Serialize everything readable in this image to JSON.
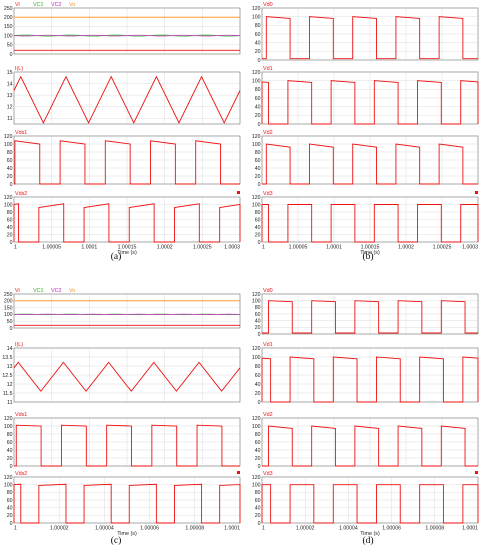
{
  "panel_labels": [
    "(a)",
    "(b)",
    "(c)",
    "(d)"
  ],
  "colors": {
    "Vi": "#ff8c1a",
    "VC1": "#33cc33",
    "VC2": "#cc33cc",
    "Vo": "#ff8c1a",
    "trace": "#ee1111",
    "legend_Vi": "#ee2222",
    "legend_VC1": "#22bb22",
    "legend_VC2": "#cc22cc",
    "legend_Vo": "#ee9922",
    "label": "#ee1111"
  },
  "chart_data": [
    {
      "type": "line",
      "name": "a1",
      "legend": [
        "Vi",
        "VC1",
        "VC2",
        "Vo"
      ],
      "ylim": [
        0,
        250
      ],
      "yticks": [
        "0",
        "50",
        "100",
        "150",
        "200",
        "250"
      ],
      "xlim": [
        1,
        1.0003
      ],
      "series": [
        {
          "key": "Vo",
          "value": 200
        },
        {
          "key": "VC1",
          "mean": 100,
          "amp": 3,
          "periods": 5
        },
        {
          "key": "VC2",
          "mean": 100,
          "amp": 2,
          "periods": 5,
          "phase": 0.5
        },
        {
          "key": "Vi",
          "value": 20
        }
      ]
    },
    {
      "type": "line",
      "name": "a2",
      "label": "I(L)",
      "ylim": [
        10.5,
        15
      ],
      "yticks": [
        "11",
        "12",
        "13",
        "14",
        "15"
      ],
      "xlim": [
        1,
        1.0003
      ],
      "triangle": {
        "min": 10.6,
        "max": 14.6,
        "periods": 5,
        "duty": 0.5,
        "start": 13.4
      }
    },
    {
      "type": "line",
      "name": "a3",
      "label": "Vds1",
      "ylim": [
        0,
        120
      ],
      "yticks": [
        "0",
        "20",
        "40",
        "60",
        "80",
        "100",
        "120"
      ],
      "xlim": [
        1,
        1.0003
      ],
      "square": {
        "high_start": 108,
        "high_end": 100,
        "low": 0,
        "periods": 5,
        "duty": 0.55,
        "offset": 0.02
      }
    },
    {
      "type": "line",
      "name": "a4",
      "label": "Vds2",
      "ylim": [
        0,
        120
      ],
      "yticks": [
        "0",
        "20",
        "40",
        "60",
        "80",
        "100",
        "120"
      ],
      "xlim": [
        1,
        1.0003
      ],
      "xticks": [
        "1",
        "1.00005",
        "1.0001",
        "1.00015",
        "1.0002",
        "1.00025",
        "1.0003"
      ],
      "xlabel": "Time (s)",
      "square": {
        "high_start": 92,
        "high_end": 102,
        "low": 0,
        "periods": 5,
        "duty": 0.55,
        "offset": 0.55
      }
    },
    {
      "type": "line",
      "name": "b1",
      "label": "Vd0",
      "ylim": [
        0,
        120
      ],
      "yticks": [
        "0",
        "20",
        "40",
        "60",
        "80",
        "100",
        "120"
      ],
      "xlim": [
        1,
        1.0003
      ],
      "square": {
        "high_start": 100,
        "high_end": 96,
        "low": 3,
        "periods": 5,
        "duty": 0.55,
        "offset": 0.1
      }
    },
    {
      "type": "line",
      "name": "b2",
      "label": "Vd1",
      "ylim": [
        0,
        120
      ],
      "yticks": [
        "0",
        "20",
        "40",
        "60",
        "80",
        "100",
        "120"
      ],
      "xlim": [
        1,
        1.0003
      ],
      "square": {
        "high_start": 100,
        "high_end": 96,
        "low": 0,
        "periods": 5,
        "duty": 0.55,
        "offset": 0.6
      }
    },
    {
      "type": "line",
      "name": "b3",
      "label": "Vd2",
      "ylim": [
        0,
        120
      ],
      "yticks": [
        "0",
        "20",
        "40",
        "60",
        "80",
        "100",
        "120"
      ],
      "xlim": [
        1,
        1.0003
      ],
      "square": {
        "high_start": 100,
        "high_end": 92,
        "low": 0,
        "periods": 5,
        "duty": 0.55,
        "offset": 0.1
      }
    },
    {
      "type": "line",
      "name": "b4",
      "label": "Vd3",
      "ylim": [
        0,
        120
      ],
      "yticks": [
        "0",
        "20",
        "40",
        "60",
        "80",
        "100",
        "120"
      ],
      "xlim": [
        1,
        1.0003
      ],
      "xticks": [
        "1",
        "1.00005",
        "1.0001",
        "1.00015",
        "1.0002",
        "1.00025",
        "1.0003"
      ],
      "xlabel": "Time (s)",
      "square": {
        "high_start": 100,
        "high_end": 100,
        "low": 0,
        "periods": 5,
        "duty": 0.55,
        "offset": 0.6
      }
    },
    {
      "type": "line",
      "name": "c1",
      "legend": [
        "Vi",
        "VC1",
        "VC2",
        "Vo"
      ],
      "ylim": [
        0,
        250
      ],
      "yticks": [
        "0",
        "50",
        "100",
        "150",
        "200",
        "250"
      ],
      "xlim": [
        1,
        1.0001
      ],
      "series": [
        {
          "key": "Vo",
          "value": 200
        },
        {
          "key": "VC1",
          "mean": 100,
          "amp": 2,
          "periods": 5
        },
        {
          "key": "VC2",
          "mean": 100,
          "amp": 1.5,
          "periods": 5,
          "phase": 0.5
        },
        {
          "key": "Vi",
          "value": 20
        }
      ]
    },
    {
      "type": "line",
      "name": "c2",
      "label": "I(L)",
      "ylim": [
        11,
        14
      ],
      "yticks": [
        "11",
        "11.5",
        "12",
        "12.5",
        "13",
        "13.5",
        "14"
      ],
      "xlim": [
        1,
        1.0001
      ],
      "triangle": {
        "min": 11.6,
        "max": 13.2,
        "periods": 5,
        "duty": 0.5,
        "start": 12.9
      }
    },
    {
      "type": "line",
      "name": "c3",
      "label": "Vds1",
      "ylim": [
        0,
        120
      ],
      "yticks": [
        "0",
        "20",
        "40",
        "60",
        "80",
        "100",
        "120"
      ],
      "xlim": [
        1,
        1.0001
      ],
      "square": {
        "high_start": 102,
        "high_end": 100,
        "low": 0,
        "periods": 5,
        "duty": 0.55,
        "offset": 0.05
      }
    },
    {
      "type": "line",
      "name": "c4",
      "label": "Vds2",
      "ylim": [
        0,
        120
      ],
      "yticks": [
        "0",
        "20",
        "40",
        "60",
        "80",
        "100",
        "120"
      ],
      "xlim": [
        1,
        1.0001
      ],
      "xticks": [
        "1",
        "1.00002",
        "1.00004",
        "1.00006",
        "1.00008",
        "1.0001"
      ],
      "xlabel": "Time (s)",
      "square": {
        "high_start": 98,
        "high_end": 101,
        "low": 0,
        "periods": 5,
        "duty": 0.6,
        "offset": 0.55
      }
    },
    {
      "type": "line",
      "name": "d1",
      "label": "Vd0",
      "ylim": [
        0,
        120
      ],
      "yticks": [
        "0",
        "20",
        "40",
        "60",
        "80",
        "100",
        "120"
      ],
      "xlim": [
        1,
        1.0001
      ],
      "square": {
        "high_start": 100,
        "high_end": 97,
        "low": 3,
        "periods": 5,
        "duty": 0.55,
        "offset": 0.15
      }
    },
    {
      "type": "line",
      "name": "d2",
      "label": "Vd1",
      "ylim": [
        0,
        120
      ],
      "yticks": [
        "0",
        "20",
        "40",
        "60",
        "80",
        "100",
        "120"
      ],
      "xlim": [
        1,
        1.0001
      ],
      "square": {
        "high_start": 100,
        "high_end": 96,
        "low": 0,
        "periods": 5,
        "duty": 0.55,
        "offset": 0.65
      }
    },
    {
      "type": "line",
      "name": "d3",
      "label": "Vd2",
      "ylim": [
        0,
        120
      ],
      "yticks": [
        "0",
        "20",
        "40",
        "60",
        "80",
        "100",
        "120"
      ],
      "xlim": [
        1,
        1.0001
      ],
      "square": {
        "high_start": 100,
        "high_end": 94,
        "low": 0,
        "periods": 5,
        "duty": 0.55,
        "offset": 0.15
      }
    },
    {
      "type": "line",
      "name": "d4",
      "label": "Vd3",
      "ylim": [
        0,
        120
      ],
      "yticks": [
        "0",
        "20",
        "40",
        "60",
        "80",
        "100",
        "120"
      ],
      "xlim": [
        1,
        1.0001
      ],
      "xticks": [
        "1",
        "1.00002",
        "1.00004",
        "1.00006",
        "1.00008",
        "1.0001"
      ],
      "xlabel": "Time (s)",
      "square": {
        "high_start": 100,
        "high_end": 100,
        "low": 0,
        "periods": 5,
        "duty": 0.55,
        "offset": 0.65
      }
    }
  ]
}
